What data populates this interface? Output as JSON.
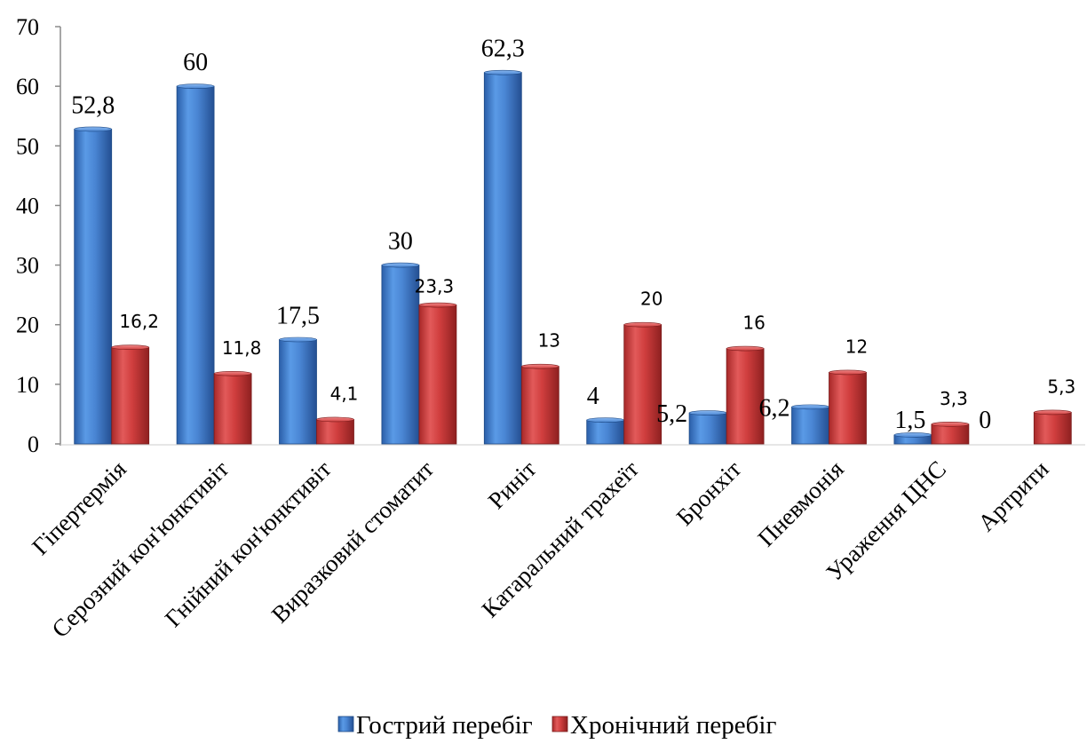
{
  "chart_data": {
    "type": "bar",
    "style": "3d-cylinder-like bars",
    "categories": [
      "Гіпертермія",
      "Серозний кон'юнктивіт",
      "Гнійний кон'юнктивіт",
      "Виразковий стоматит",
      "Риніт",
      "Катаральний трахеїт",
      "Бронхіт",
      "Пневмонія",
      "Ураження ЦНС",
      "Артрити"
    ],
    "series": [
      {
        "name": "Гострий перебіг",
        "color": "#3A78C8",
        "values": [
          52.8,
          60,
          17.5,
          30,
          62.3,
          4,
          5.2,
          6.2,
          1.5,
          0
        ],
        "labels": [
          "52,8",
          "60",
          "17,5",
          "30",
          "62,3",
          "4",
          "5,2",
          "6,2",
          "1,5",
          "0"
        ]
      },
      {
        "name": "Хронічний перебіг",
        "color": "#D23A3A",
        "values": [
          16.2,
          11.8,
          4.1,
          23.3,
          13,
          20,
          16,
          12,
          3.3,
          5.3
        ],
        "labels": [
          "16,2",
          "11,8",
          "4,1",
          "23,3",
          "13",
          "20",
          "16",
          "12",
          "3,3",
          "5,3"
        ]
      }
    ],
    "yticks": [
      "0",
      "10",
      "20",
      "30",
      "40",
      "50",
      "60",
      "70"
    ],
    "ylim": [
      0,
      70
    ],
    "grid": false,
    "legend": "bottom"
  }
}
